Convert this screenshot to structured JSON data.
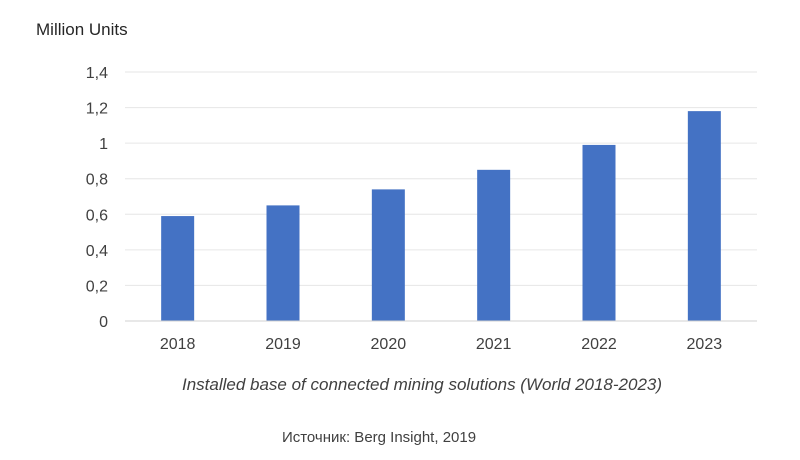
{
  "chart_data": {
    "type": "bar",
    "ylabel": "Million Units",
    "categories": [
      "2018",
      "2019",
      "2020",
      "2021",
      "2022",
      "2023"
    ],
    "values": [
      0.59,
      0.65,
      0.74,
      0.85,
      0.99,
      1.18
    ],
    "ylim": [
      0,
      1.4
    ],
    "yticks": [
      0,
      0.2,
      0.4,
      0.6,
      0.8,
      1,
      1.2,
      1.4
    ],
    "ytick_labels": [
      "0",
      "0,2",
      "0,4",
      "0,6",
      "0,8",
      "1",
      "1,2",
      "1,4"
    ],
    "grid": true,
    "legend": "none",
    "bar_color": "#4472c4",
    "caption": "Installed base of connected mining solutions (World 2018-2023)",
    "source": "Источник: Berg Insight, 2019"
  }
}
